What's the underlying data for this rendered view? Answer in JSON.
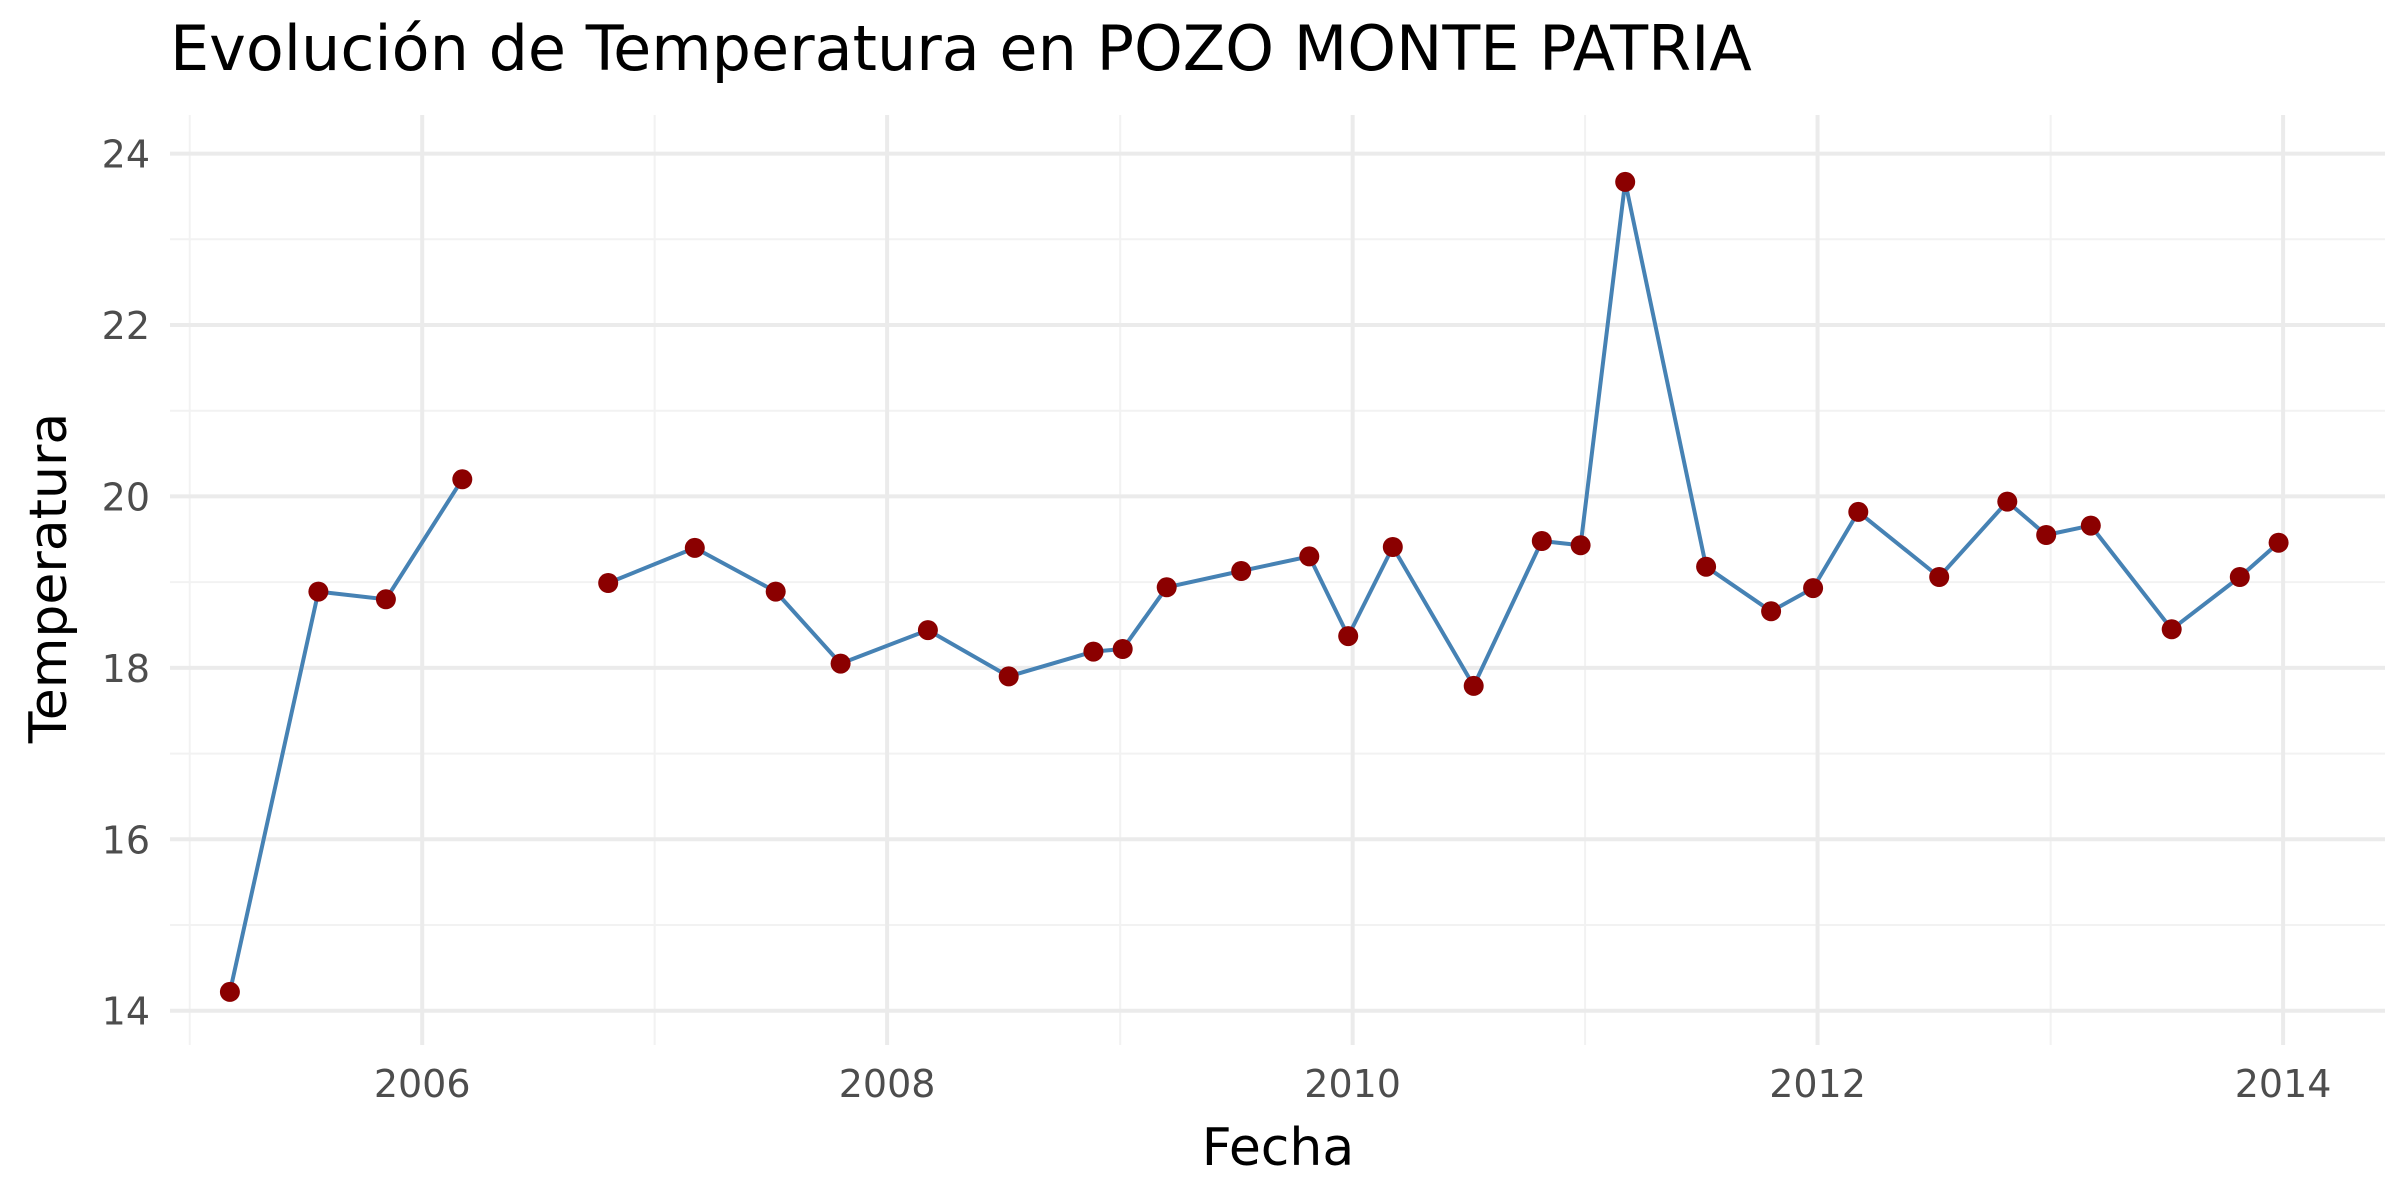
{
  "chart_data": {
    "type": "line",
    "title": "Evolución de Temperatura en POZO MONTE PATRIA",
    "xlabel": "Fecha",
    "ylabel": "Temperatura",
    "x_axis_type": "date",
    "xlim": [
      "2004-12-01",
      "2014-06-10"
    ],
    "ylim": [
      13.6,
      24.45
    ],
    "x_ticks": [
      {
        "value": "2006-01-01",
        "label": "2006"
      },
      {
        "value": "2008-01-01",
        "label": "2008"
      },
      {
        "value": "2010-01-01",
        "label": "2010"
      },
      {
        "value": "2012-01-01",
        "label": "2012"
      },
      {
        "value": "2014-01-01",
        "label": "2014"
      }
    ],
    "x_minor_ticks": [
      "2005-01-01",
      "2007-01-01",
      "2009-01-01",
      "2011-01-01",
      "2013-01-01"
    ],
    "y_ticks": [
      {
        "value": 14,
        "label": "14"
      },
      {
        "value": 16,
        "label": "16"
      },
      {
        "value": 18,
        "label": "18"
      },
      {
        "value": 20,
        "label": "20"
      },
      {
        "value": 22,
        "label": "22"
      },
      {
        "value": 24,
        "label": "24"
      }
    ],
    "y_minor_ticks": [
      15,
      17,
      19,
      21,
      23
    ],
    "grid": true,
    "legend": "none",
    "line_color": "#4682B4",
    "point_color": "#8B0000",
    "segments": [
      [
        {
          "x": "2005-03-05",
          "y": 14.22
        },
        {
          "x": "2005-07-22",
          "y": 18.89
        },
        {
          "x": "2005-11-05",
          "y": 18.8
        },
        {
          "x": "2006-03-05",
          "y": 20.2
        }
      ],
      [
        {
          "x": "2006-10-20",
          "y": 18.99
        },
        {
          "x": "2007-03-05",
          "y": 19.4
        },
        {
          "x": "2007-07-10",
          "y": 18.89
        },
        {
          "x": "2007-10-20",
          "y": 18.05
        },
        {
          "x": "2008-03-05",
          "y": 18.44
        },
        {
          "x": "2008-07-10",
          "y": 17.9
        },
        {
          "x": "2008-11-20",
          "y": 18.19
        },
        {
          "x": "2009-01-05",
          "y": 18.22
        },
        {
          "x": "2009-03-15",
          "y": 18.94
        },
        {
          "x": "2009-07-10",
          "y": 19.13
        },
        {
          "x": "2009-10-25",
          "y": 19.3
        },
        {
          "x": "2009-12-25",
          "y": 18.37
        },
        {
          "x": "2010-03-05",
          "y": 19.41
        },
        {
          "x": "2010-07-10",
          "y": 17.79
        },
        {
          "x": "2010-10-25",
          "y": 19.48
        },
        {
          "x": "2010-12-25",
          "y": 19.43
        },
        {
          "x": "2011-03-05",
          "y": 23.67
        },
        {
          "x": "2011-07-10",
          "y": 19.18
        },
        {
          "x": "2011-10-20",
          "y": 18.66
        },
        {
          "x": "2011-12-25",
          "y": 18.93
        },
        {
          "x": "2012-03-05",
          "y": 19.82
        },
        {
          "x": "2012-07-10",
          "y": 19.06
        },
        {
          "x": "2012-10-25",
          "y": 19.94
        },
        {
          "x": "2012-12-25",
          "y": 19.55
        },
        {
          "x": "2013-03-05",
          "y": 19.66
        },
        {
          "x": "2013-07-10",
          "y": 18.45
        },
        {
          "x": "2013-10-25",
          "y": 19.06
        },
        {
          "x": "2013-12-25",
          "y": 19.46
        }
      ]
    ]
  }
}
